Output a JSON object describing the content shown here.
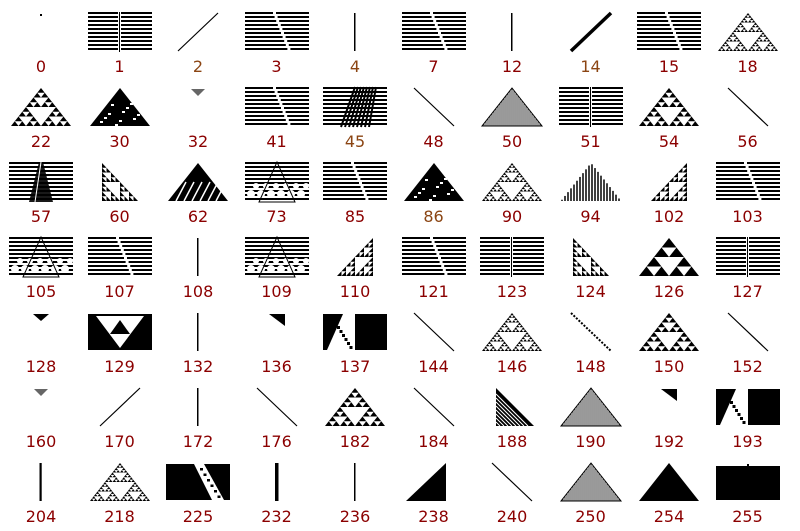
{
  "colors": {
    "default_label": "#8b0000",
    "alt_label": "#8b4513",
    "ink": "#000000",
    "paper": "#ffffff"
  },
  "rules": [
    {
      "label": "0",
      "kind": "dot"
    },
    {
      "label": "1",
      "kind": "stripes_split"
    },
    {
      "label": "2",
      "kind": "diag_up",
      "color": "alt"
    },
    {
      "label": "3",
      "kind": "stripes_shift"
    },
    {
      "label": "4",
      "kind": "vline",
      "color": "alt"
    },
    {
      "label": "7",
      "kind": "stripes_shift"
    },
    {
      "label": "12",
      "kind": "vline"
    },
    {
      "label": "14",
      "kind": "diag_up_thick",
      "color": "alt"
    },
    {
      "label": "15",
      "kind": "stripes_shift"
    },
    {
      "label": "18",
      "kind": "sierpinski_fine"
    },
    {
      "label": "22",
      "kind": "sierpinski"
    },
    {
      "label": "30",
      "kind": "chaotic"
    },
    {
      "label": "32",
      "kind": "tiny_tri"
    },
    {
      "label": "41",
      "kind": "stripes_shift"
    },
    {
      "label": "45",
      "kind": "stripes_chaos",
      "color": "alt"
    },
    {
      "label": "48",
      "kind": "diag_down"
    },
    {
      "label": "50",
      "kind": "tri_hatched"
    },
    {
      "label": "51",
      "kind": "stripes_split"
    },
    {
      "label": "54",
      "kind": "sierpinski"
    },
    {
      "label": "56",
      "kind": "diag_down"
    },
    {
      "label": "57",
      "kind": "stripes_fan"
    },
    {
      "label": "60",
      "kind": "right_sierp"
    },
    {
      "label": "62",
      "kind": "tri_textured"
    },
    {
      "label": "73",
      "kind": "stripes_bumps"
    },
    {
      "label": "85",
      "kind": "stripes_shift"
    },
    {
      "label": "86",
      "kind": "chaotic",
      "color": "alt"
    },
    {
      "label": "90",
      "kind": "sierpinski_fine"
    },
    {
      "label": "94",
      "kind": "tri_vertical"
    },
    {
      "label": "102",
      "kind": "left_sierp"
    },
    {
      "label": "103",
      "kind": "stripes_shift"
    },
    {
      "label": "105",
      "kind": "stripes_bumps"
    },
    {
      "label": "107",
      "kind": "stripes_shift"
    },
    {
      "label": "108",
      "kind": "vline"
    },
    {
      "label": "109",
      "kind": "stripes_bumps"
    },
    {
      "label": "110",
      "kind": "left_sierp"
    },
    {
      "label": "121",
      "kind": "stripes_shift"
    },
    {
      "label": "123",
      "kind": "stripes_split"
    },
    {
      "label": "124",
      "kind": "right_sierp"
    },
    {
      "label": "126",
      "kind": "sierpinski_big"
    },
    {
      "label": "127",
      "kind": "stripes_split"
    },
    {
      "label": "128",
      "kind": "tiny_tri_solid"
    },
    {
      "label": "129",
      "kind": "rect_sierp"
    },
    {
      "label": "132",
      "kind": "vline"
    },
    {
      "label": "136",
      "kind": "tiny_corner"
    },
    {
      "label": "137",
      "kind": "rect_diag"
    },
    {
      "label": "144",
      "kind": "diag_down"
    },
    {
      "label": "146",
      "kind": "sierpinski_fine"
    },
    {
      "label": "148",
      "kind": "diag_down_dotted"
    },
    {
      "label": "150",
      "kind": "sierpinski"
    },
    {
      "label": "152",
      "kind": "diag_down"
    },
    {
      "label": "160",
      "kind": "tiny_tri"
    },
    {
      "label": "170",
      "kind": "diag_up"
    },
    {
      "label": "172",
      "kind": "vline"
    },
    {
      "label": "176",
      "kind": "diag_down"
    },
    {
      "label": "182",
      "kind": "sierpinski_dark"
    },
    {
      "label": "184",
      "kind": "diag_down"
    },
    {
      "label": "188",
      "kind": "right_hatched"
    },
    {
      "label": "190",
      "kind": "tri_hatched"
    },
    {
      "label": "192",
      "kind": "tiny_corner"
    },
    {
      "label": "193",
      "kind": "rect_diag"
    },
    {
      "label": "204",
      "kind": "vline_thick"
    },
    {
      "label": "218",
      "kind": "sierpinski_fine"
    },
    {
      "label": "225",
      "kind": "rect_diag_wide"
    },
    {
      "label": "232",
      "kind": "vline_bold"
    },
    {
      "label": "236",
      "kind": "vline"
    },
    {
      "label": "238",
      "kind": "right_tri_solid"
    },
    {
      "label": "240",
      "kind": "diag_down"
    },
    {
      "label": "250",
      "kind": "tri_hatched"
    },
    {
      "label": "254",
      "kind": "tri_solid"
    },
    {
      "label": "255",
      "kind": "rect_solid"
    }
  ]
}
